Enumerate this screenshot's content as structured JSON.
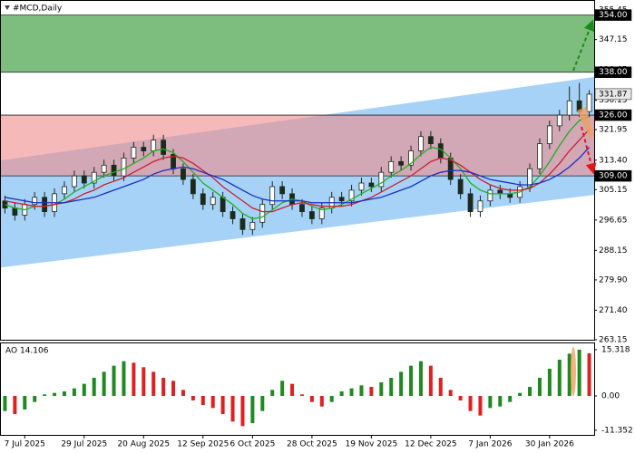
{
  "chart_data": [
    {
      "type": "candlestick",
      "title": "#MCD,Daily",
      "categories": [
        null,
        null,
        "7 Jul 2025",
        null,
        null,
        null,
        null,
        null,
        "29 Jul 2025",
        null,
        null,
        null,
        null,
        null,
        "20 Aug 2025",
        null,
        null,
        null,
        null,
        null,
        "12 Sep 2025",
        null,
        null,
        null,
        null,
        "6 Oct 2025",
        null,
        null,
        null,
        null,
        null,
        "28 Oct 2025",
        null,
        null,
        null,
        null,
        null,
        "19 Nov 2025",
        null,
        null,
        null,
        null,
        null,
        "12 Dec 2025",
        null,
        null,
        null,
        null,
        null,
        "7 Jan 2026",
        null,
        null,
        null,
        null,
        null,
        "30 Jan 2026",
        null,
        null,
        null,
        null
      ],
      "open": [
        302,
        300,
        298,
        301,
        303,
        299,
        304,
        306,
        309,
        307,
        310,
        312,
        309,
        314,
        317,
        316,
        319,
        315,
        311,
        308,
        304,
        301,
        303,
        299,
        297,
        294,
        296,
        301,
        306,
        304,
        301,
        299,
        297,
        300,
        303,
        302,
        305,
        307,
        306,
        310,
        313,
        312,
        316,
        320,
        318,
        314,
        308,
        304,
        299,
        302,
        305,
        304,
        303,
        306,
        311,
        318,
        323,
        326,
        330,
        327
      ],
      "high": [
        303.5,
        301.5,
        302.5,
        304.5,
        304.5,
        305.5,
        307.5,
        310.5,
        310.5,
        311.5,
        313.5,
        313.5,
        315.5,
        318.5,
        318.5,
        320.5,
        320.5,
        316.5,
        312.5,
        309.5,
        305.5,
        304.5,
        304.5,
        300.5,
        298.5,
        297.5,
        302.5,
        307.5,
        307.5,
        305.5,
        302.5,
        300.5,
        301.5,
        304.5,
        304.5,
        306.5,
        308.5,
        308.5,
        311.5,
        314.5,
        314.5,
        317.5,
        321.5,
        321.5,
        319.5,
        315.5,
        309.5,
        305.5,
        303.5,
        306.5,
        306.5,
        305.5,
        307.5,
        312.5,
        319.5,
        324.5,
        327.5,
        334,
        335,
        333
      ],
      "low": [
        298.5,
        296.5,
        296.5,
        299.5,
        297.5,
        297.5,
        302.5,
        304.5,
        305.5,
        305.5,
        308.5,
        307.5,
        307.5,
        312.5,
        314.5,
        314.5,
        313.5,
        309.5,
        306.5,
        302.5,
        299.5,
        299.5,
        297.5,
        295.5,
        292.5,
        292.5,
        294.5,
        299.5,
        302.5,
        299.5,
        297.5,
        295.5,
        295.5,
        298.5,
        300.5,
        300.5,
        303.5,
        304.5,
        304.5,
        308.5,
        310.5,
        310.5,
        314.5,
        316.5,
        312.5,
        306.5,
        302.5,
        297.5,
        297.5,
        300.5,
        302.5,
        301.5,
        301.5,
        304.5,
        309.5,
        316.5,
        321.5,
        324.5,
        325.5,
        325.5
      ],
      "close": [
        300,
        298,
        301,
        303,
        299,
        304,
        306,
        309,
        307,
        310,
        312,
        309,
        314,
        317,
        316,
        319,
        315,
        311,
        308,
        304,
        301,
        303,
        299,
        297,
        294,
        296,
        301,
        306,
        304,
        301,
        299,
        297,
        300,
        303,
        302,
        305,
        307,
        306,
        310,
        313,
        312,
        316,
        320,
        318,
        314,
        308,
        304,
        299,
        302,
        305,
        304,
        303,
        306,
        311,
        318,
        323,
        326,
        330,
        327,
        331.87
      ],
      "candle_color": "#1c2a1c",
      "lines": [
        {
          "color": "#22b022",
          "values": [
            301,
            300,
            299.5,
            300.5,
            300.5,
            301,
            302.5,
            304.5,
            306,
            307.5,
            309,
            310,
            311,
            312.5,
            314,
            316,
            316.5,
            315.5,
            313,
            310,
            307,
            305,
            303,
            301,
            298.5,
            297,
            297.5,
            299.5,
            301.5,
            302.5,
            302,
            300.5,
            299.5,
            300,
            301,
            302.5,
            304,
            305.5,
            307,
            309,
            310.5,
            312.5,
            315,
            317,
            316.5,
            314,
            311,
            307,
            305,
            304,
            304,
            304,
            304.5,
            306,
            309,
            313,
            317.5,
            321.5,
            324.5,
            325.5
          ]
        },
        {
          "color": "#cc2030",
          "values": [
            302,
            301.5,
            301,
            300.5,
            300.5,
            301,
            301.5,
            302.5,
            304,
            305,
            306.5,
            307.5,
            308.5,
            310,
            311.5,
            313,
            314,
            314.5,
            314,
            312.5,
            310.5,
            308.5,
            306,
            304,
            302,
            300,
            299,
            299,
            300,
            301,
            301.5,
            301,
            300.5,
            300.5,
            300.5,
            301,
            302,
            303,
            304.5,
            306,
            307.5,
            309,
            311,
            313,
            314,
            313.5,
            312,
            310,
            308,
            306.5,
            305.5,
            305,
            305,
            305.5,
            307,
            309.5,
            312.5,
            316,
            319,
            322
          ]
        },
        {
          "color": "#1a30c0",
          "values": [
            303,
            302.5,
            302,
            301.5,
            301.5,
            301.5,
            301.5,
            302,
            302.5,
            303,
            304,
            305,
            306,
            307,
            308,
            309.5,
            310.5,
            311,
            311.5,
            311,
            310,
            309,
            308,
            306.5,
            305,
            303.5,
            302.5,
            302,
            302,
            302,
            302,
            301.5,
            301.5,
            301.5,
            301.5,
            301.5,
            302,
            302.5,
            303,
            304,
            305,
            306,
            307.5,
            309,
            310,
            310.5,
            310.5,
            310,
            309,
            308,
            307.5,
            307,
            306.5,
            306.5,
            307,
            308,
            309.5,
            311.5,
            314,
            317
          ]
        }
      ],
      "channel": {
        "x": [
          0,
          59
        ],
        "lower": [
          283.5,
          303.5
        ],
        "upper": [
          313.5,
          336.5
        ],
        "color": "#a6d2f7"
      },
      "zones": [
        {
          "low": {
            "value": 338,
            "label": "338.00"
          },
          "high": {
            "value": 354,
            "label": "354.00"
          },
          "color": "#7dbd7d"
        },
        {
          "low": {
            "value": 309,
            "label": "309.00"
          },
          "high": {
            "value": 326,
            "label": "326.00"
          },
          "color": "#f08a8a"
        }
      ],
      "last_price": 331.87,
      "ylim": [
        263.15,
        357.2
      ],
      "yticks": [
        355.45,
        347.15,
        338.65,
        330.15,
        321.95,
        {
          "value": 313.4,
          "label": "313.40"
        },
        305.15,
        296.65,
        288.15,
        {
          "value": 279.9,
          "label": "279.90"
        },
        {
          "value": 271.4,
          "label": "271.40"
        },
        263.15
      ]
    },
    {
      "type": "oscillator",
      "title": "AO 14.106",
      "values": [
        -5,
        -6,
        -4.5,
        -2,
        0.5,
        1,
        1.5,
        2.5,
        4,
        6,
        8,
        10,
        11.5,
        11,
        9.5,
        8,
        6,
        5,
        2,
        -1.5,
        -3,
        -4,
        -6,
        -8.5,
        -10,
        -9,
        -5,
        2,
        5,
        4,
        0.5,
        -2,
        -3.5,
        -2,
        1.5,
        2.5,
        3.5,
        3,
        4.5,
        6,
        8,
        10,
        11.5,
        10,
        6,
        2,
        -1.5,
        -5,
        -6.5,
        -4,
        -3.5,
        -2,
        1,
        3,
        6,
        9,
        12,
        14,
        15.3,
        14.106
      ],
      "up_color": "#1f8a1f",
      "down_color": "#e02020",
      "ylim": [
        -12.9,
        17.1
      ],
      "yticks": [
        15.318,
        {
          "value": 0,
          "label": "0.00"
        },
        -11.352
      ]
    }
  ]
}
